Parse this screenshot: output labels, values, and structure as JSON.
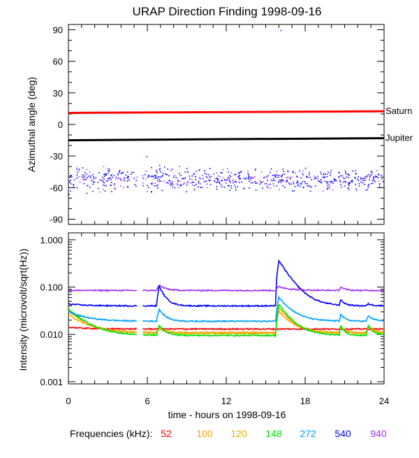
{
  "title": "URAP Direction Finding  1998-09-16",
  "xlabel": "time - hours on 1998-09-16",
  "legend_label": "Frequencies (kHz):",
  "colors": {
    "saturn": "#ff0000",
    "jupiter": "#000000",
    "f52": "#ff0000",
    "f100": "#ffa500",
    "f120": "#e0b000",
    "f148": "#00e000",
    "f272": "#00a0ff",
    "f540": "#0000ff",
    "f940": "#a030ff"
  },
  "chart_data": [
    {
      "type": "scatter",
      "panel": "azimuth",
      "title": "URAP Direction Finding  1998-09-16",
      "ylabel": "Azimuthal angle (deg)",
      "xlabel": "",
      "xlim": [
        0,
        24
      ],
      "ylim": [
        -95,
        95
      ],
      "yticks": [
        90,
        60,
        30,
        0,
        -30,
        -60,
        -90
      ],
      "reference_lines": [
        {
          "name": "Saturn",
          "y_start": 11,
          "y_end": 12.5,
          "color": "#ff0000"
        },
        {
          "name": "Jupiter",
          "y_start": -15,
          "y_end": -13,
          "color": "#000000"
        }
      ],
      "scatter_cloud": {
        "y_center": -52,
        "y_spread": 8,
        "x_gap": [
          5.2,
          5.6
        ],
        "outliers": [
          {
            "x": 16.1,
            "y": 90
          },
          {
            "x": 5.9,
            "y": -30
          }
        ],
        "colors": [
          "#0000ff",
          "#a030ff"
        ]
      }
    },
    {
      "type": "line",
      "panel": "intensity",
      "ylabel": "Intensity (microvolt/sqrt(Hz))",
      "xlabel": "time - hours on 1998-09-16",
      "xlim": [
        0,
        24
      ],
      "ylim": [
        0.001,
        1.0
      ],
      "yscale": "log",
      "yticks": [
        "1.000",
        "0.100",
        "0.010",
        "0.001"
      ],
      "xticks": [
        0,
        6,
        12,
        18,
        24
      ],
      "data_gap": [
        5.2,
        5.6
      ],
      "series": [
        {
          "name": "52",
          "color": "#ff0000",
          "baseline": 0.013
        },
        {
          "name": "100",
          "color": "#ffa500",
          "baseline": 0.011
        },
        {
          "name": "120",
          "color": "#e0b000",
          "baseline": 0.0105
        },
        {
          "name": "148",
          "color": "#00e000",
          "baseline": 0.0095
        },
        {
          "name": "272",
          "color": "#00a0ff",
          "baseline": 0.019
        },
        {
          "name": "540",
          "color": "#0000ff",
          "baseline": 0.04
        },
        {
          "name": "940",
          "color": "#a030ff",
          "baseline": 0.085
        }
      ]
    }
  ],
  "legend": [
    {
      "label": "52",
      "color": "#ff0000"
    },
    {
      "label": "100",
      "color": "#ffa500"
    },
    {
      "label": "120",
      "color": "#e0b000"
    },
    {
      "label": "148",
      "color": "#00e000"
    },
    {
      "label": "272",
      "color": "#00a0ff"
    },
    {
      "label": "540",
      "color": "#0000ff"
    },
    {
      "label": "940",
      "color": "#a030ff"
    }
  ]
}
